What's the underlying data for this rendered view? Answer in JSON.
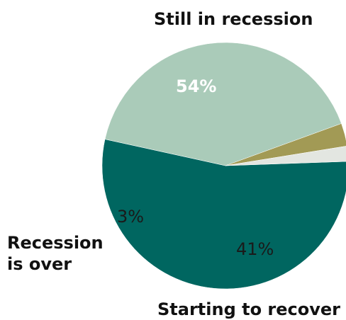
{
  "chart_data": {
    "type": "pie",
    "slices": [
      {
        "label": "Still in recession",
        "value": 54,
        "value_label": "54%",
        "color": "#006660"
      },
      {
        "label": "Starting to recover",
        "value": 41,
        "value_label": "41%",
        "color": "#aacbb9"
      },
      {
        "label": "Recession is over",
        "label_lines": [
          "Recession",
          "is over"
        ],
        "value": 3,
        "value_label": "3%",
        "color": "#a29a55"
      },
      {
        "label": "",
        "value": 2,
        "value_label": "",
        "color": "#e3e6e1"
      }
    ]
  }
}
